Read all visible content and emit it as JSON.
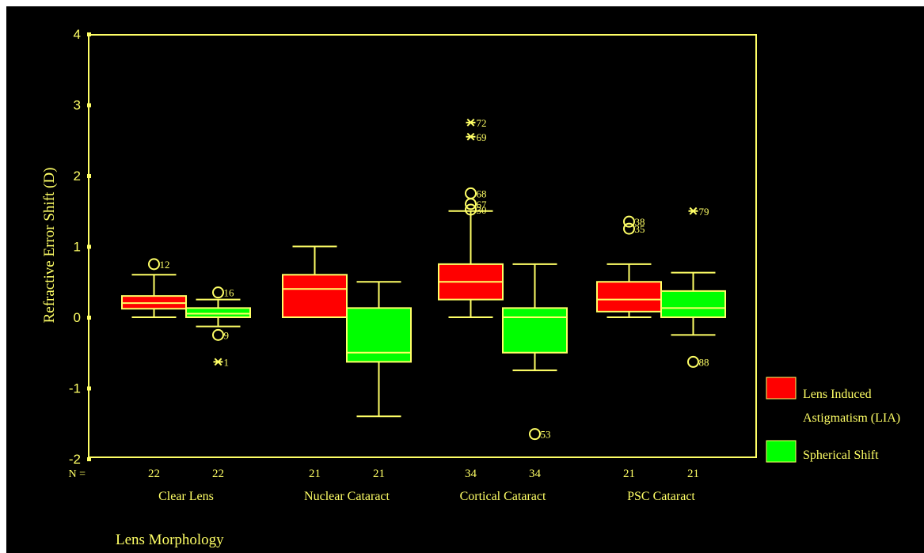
{
  "colors": {
    "background": "#000000",
    "frame": "#ffff66",
    "text": "#ffff66",
    "lia_fill": "#ff0000",
    "spherical_fill": "#00ff00"
  },
  "chart_data": {
    "type": "box",
    "ylabel": "Refractive Error Shift (D)",
    "xlabel": "Lens Morphology",
    "ylim": [
      -2,
      4
    ],
    "yticks": [
      "4",
      "3",
      "2",
      "1",
      "0",
      "-1",
      "-2"
    ],
    "n_label": "N =",
    "categories": [
      "Clear Lens",
      "Nuclear Cataract",
      "Cortical Cataract",
      "PSC Cataract"
    ],
    "legend": {
      "placement": "right",
      "entries": [
        {
          "label_line1": "Lens Induced",
          "label_line2": "Astigmatism (LIA)",
          "color": "#ff0000"
        },
        {
          "label_line1": "Spherical Shift",
          "label_line2": "",
          "color": "#00ff00"
        }
      ]
    },
    "boxes": [
      {
        "group": 0,
        "series": 0,
        "n": "22",
        "whisker_low": 0.0,
        "q1": 0.12,
        "median": 0.2,
        "q3": 0.3,
        "whisker_high": 0.6,
        "outliers": [
          {
            "value": 0.75,
            "label": "12",
            "marker": "circle"
          }
        ]
      },
      {
        "group": 0,
        "series": 1,
        "n": "22",
        "whisker_low": -0.13,
        "q1": 0.0,
        "median": 0.05,
        "q3": 0.13,
        "whisker_high": 0.25,
        "outliers": [
          {
            "value": 0.35,
            "label": "16",
            "marker": "circle"
          },
          {
            "value": -0.25,
            "label": "9",
            "marker": "circle"
          },
          {
            "value": -0.63,
            "label": "1",
            "marker": "star"
          }
        ]
      },
      {
        "group": 1,
        "series": 0,
        "n": "21",
        "whisker_low": 0.0,
        "q1": 0.0,
        "median": 0.4,
        "q3": 0.6,
        "whisker_high": 1.0,
        "outliers": []
      },
      {
        "group": 1,
        "series": 1,
        "n": "21",
        "whisker_low": -1.4,
        "q1": -0.63,
        "median": -0.5,
        "q3": 0.13,
        "whisker_high": 0.5,
        "outliers": []
      },
      {
        "group": 2,
        "series": 0,
        "n": "34",
        "whisker_low": 0.0,
        "q1": 0.25,
        "median": 0.5,
        "q3": 0.75,
        "whisker_high": 1.5,
        "outliers": [
          {
            "value": 2.75,
            "label": "72",
            "marker": "star"
          },
          {
            "value": 2.55,
            "label": "69",
            "marker": "star"
          },
          {
            "value": 1.75,
            "label": "68",
            "marker": "circle"
          },
          {
            "value": 1.6,
            "label": "67",
            "marker": "circle"
          },
          {
            "value": 1.52,
            "label": "30",
            "marker": "circle"
          }
        ]
      },
      {
        "group": 2,
        "series": 1,
        "n": "34",
        "whisker_low": -0.75,
        "q1": -0.5,
        "median": 0.0,
        "q3": 0.13,
        "whisker_high": 0.75,
        "outliers": [
          {
            "value": -1.65,
            "label": "53",
            "marker": "circle"
          }
        ]
      },
      {
        "group": 3,
        "series": 0,
        "n": "21",
        "whisker_low": 0.0,
        "q1": 0.08,
        "median": 0.25,
        "q3": 0.5,
        "whisker_high": 0.75,
        "outliers": [
          {
            "value": 1.35,
            "label": "38",
            "marker": "circle"
          },
          {
            "value": 1.25,
            "label": "35",
            "marker": "circle"
          }
        ]
      },
      {
        "group": 3,
        "series": 1,
        "n": "21",
        "whisker_low": -0.25,
        "q1": 0.0,
        "median": 0.13,
        "q3": 0.37,
        "whisker_high": 0.63,
        "outliers": [
          {
            "value": 1.5,
            "label": "79",
            "marker": "star"
          },
          {
            "value": -0.63,
            "label": "88",
            "marker": "circle"
          }
        ]
      }
    ]
  }
}
